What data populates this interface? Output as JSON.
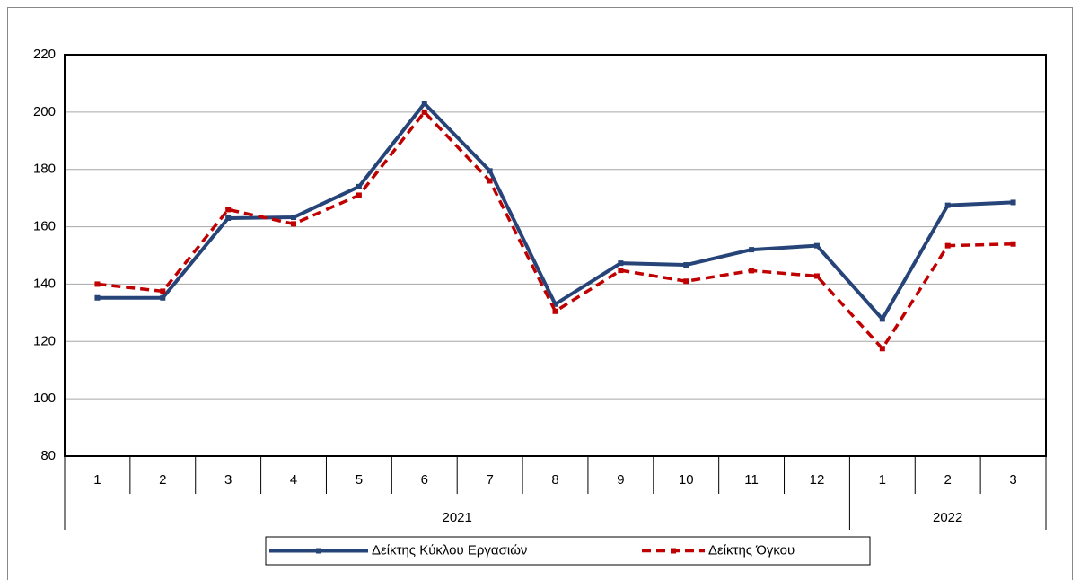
{
  "chart_data": {
    "type": "line",
    "groups": [
      {
        "label": "2021",
        "categories": [
          "1",
          "2",
          "3",
          "4",
          "5",
          "6",
          "7",
          "8",
          "9",
          "10",
          "11",
          "12"
        ]
      },
      {
        "label": "2022",
        "categories": [
          "1",
          "2",
          "3"
        ]
      }
    ],
    "series": [
      {
        "name": "Δείκτης Κύκλου Εργασιών",
        "color": "#264478",
        "dashed": false,
        "values": [
          135.2,
          135.2,
          163,
          163.3,
          174,
          203,
          179.5,
          133,
          147.3,
          146.7,
          152,
          153.4,
          127.8,
          167.5,
          168.5
        ]
      },
      {
        "name": "Δείκτης Όγκου",
        "color": "#c00000",
        "dashed": true,
        "values": [
          140,
          137.5,
          166,
          161,
          171,
          200,
          176,
          130.5,
          144.8,
          141,
          144.7,
          142.8,
          117.5,
          153.4,
          154
        ]
      }
    ],
    "ylim": [
      80,
      220
    ],
    "yticks": [
      80,
      100,
      120,
      140,
      160,
      180,
      200,
      220
    ],
    "grid": true,
    "legend": "bottom"
  }
}
